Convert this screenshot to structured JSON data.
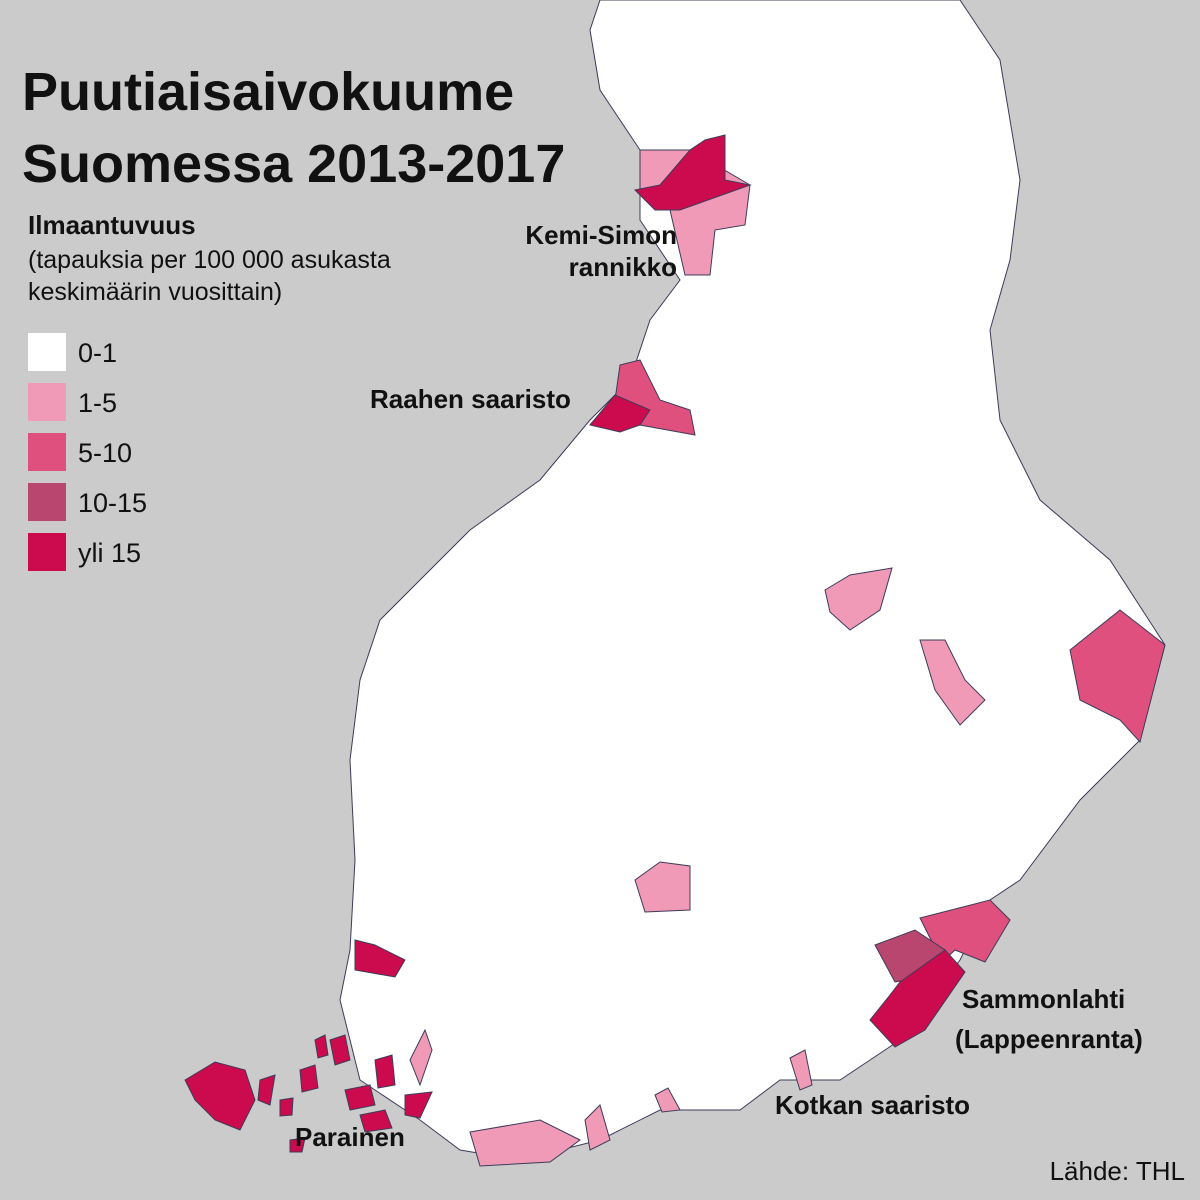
{
  "header": {
    "title": [
      "Puutiaisaivokuume",
      "Suomessa 2013-2017"
    ]
  },
  "legend": {
    "title": "Ilmaantuvuus",
    "subtitle": [
      "(tapauksia per 100 000 asukasta",
      "keskimäärin vuosittain)"
    ],
    "items": [
      {
        "label": "0-1",
        "color": "#ffffff"
      },
      {
        "label": "1-5",
        "color": "#f09ab8"
      },
      {
        "label": "5-10",
        "color": "#e0507e"
      },
      {
        "label": "10-15",
        "color": "#b8466e"
      },
      {
        "label": "yli 15",
        "color": "#cc0a4e"
      }
    ]
  },
  "annotations": [
    {
      "lines": [
        "Kemi-Simon",
        "rannikko"
      ]
    },
    {
      "lines": [
        "Raahen saaristo"
      ]
    },
    {
      "lines": [
        "Sammonlahti",
        "(Lappeenranta)"
      ]
    },
    {
      "lines": [
        "Kotkan saaristo"
      ]
    },
    {
      "lines": [
        "Parainen"
      ]
    }
  ],
  "source": "Lähde: THL"
}
